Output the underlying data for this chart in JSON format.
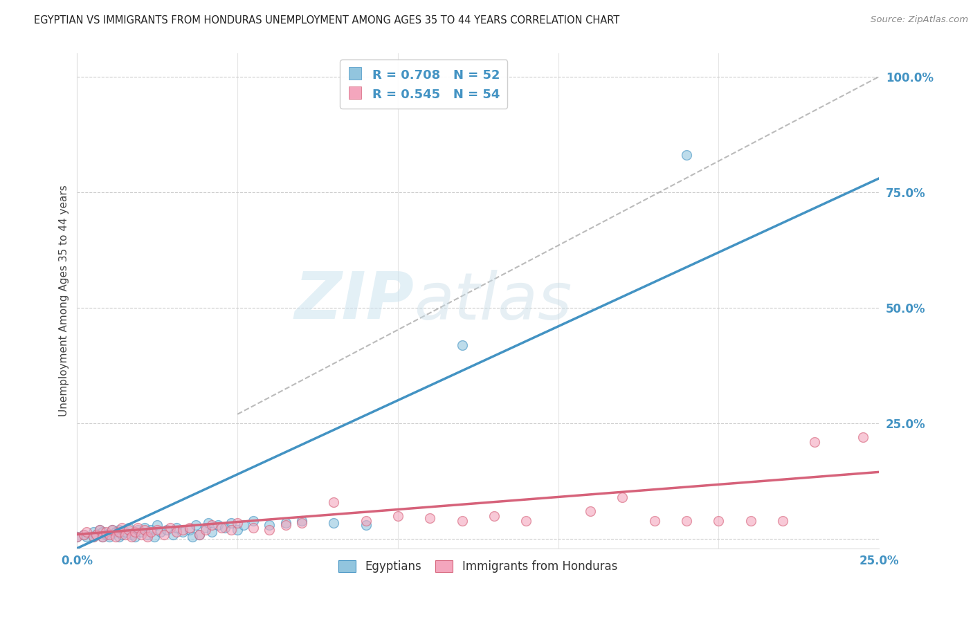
{
  "title": "EGYPTIAN VS IMMIGRANTS FROM HONDURAS UNEMPLOYMENT AMONG AGES 35 TO 44 YEARS CORRELATION CHART",
  "source": "Source: ZipAtlas.com",
  "ylabel": "Unemployment Among Ages 35 to 44 years",
  "xlim": [
    0.0,
    0.25
  ],
  "ylim": [
    -0.02,
    1.05
  ],
  "blue_R": 0.708,
  "blue_N": 52,
  "pink_R": 0.545,
  "pink_N": 54,
  "blue_color": "#92c5de",
  "pink_color": "#f4a6bd",
  "blue_line_color": "#4393c3",
  "pink_line_color": "#d6627a",
  "dashed_line_color": "#aaaaaa",
  "grid_color": "#cccccc",
  "blue_line_x0": 0.0,
  "blue_line_y0": -0.02,
  "blue_line_x1": 0.25,
  "blue_line_y1": 0.78,
  "pink_line_x0": 0.0,
  "pink_line_y0": 0.01,
  "pink_line_x1": 0.25,
  "pink_line_y1": 0.145,
  "dash_line_x0": 0.05,
  "dash_line_y0": 0.27,
  "dash_line_x1": 0.25,
  "dash_line_y1": 1.0,
  "blue_scatter_x": [
    0.0,
    0.002,
    0.003,
    0.005,
    0.005,
    0.006,
    0.007,
    0.008,
    0.008,
    0.009,
    0.01,
    0.011,
    0.012,
    0.013,
    0.013,
    0.014,
    0.015,
    0.016,
    0.017,
    0.018,
    0.019,
    0.02,
    0.021,
    0.022,
    0.023,
    0.024,
    0.025,
    0.026,
    0.028,
    0.03,
    0.031,
    0.033,
    0.035,
    0.036,
    0.037,
    0.038,
    0.04,
    0.041,
    0.042,
    0.044,
    0.046,
    0.048,
    0.05,
    0.052,
    0.055,
    0.06,
    0.065,
    0.07,
    0.08,
    0.09,
    0.12,
    0.19
  ],
  "blue_scatter_y": [
    0.005,
    0.01,
    0.005,
    0.015,
    0.005,
    0.01,
    0.02,
    0.005,
    0.015,
    0.01,
    0.005,
    0.02,
    0.015,
    0.005,
    0.02,
    0.01,
    0.015,
    0.025,
    0.01,
    0.005,
    0.02,
    0.015,
    0.025,
    0.01,
    0.02,
    0.005,
    0.03,
    0.015,
    0.02,
    0.01,
    0.025,
    0.015,
    0.02,
    0.005,
    0.03,
    0.01,
    0.025,
    0.035,
    0.015,
    0.03,
    0.025,
    0.035,
    0.02,
    0.03,
    0.04,
    0.03,
    0.035,
    0.04,
    0.035,
    0.03,
    0.42,
    0.83
  ],
  "pink_scatter_x": [
    0.0,
    0.002,
    0.003,
    0.005,
    0.006,
    0.007,
    0.008,
    0.009,
    0.01,
    0.011,
    0.012,
    0.013,
    0.014,
    0.015,
    0.016,
    0.017,
    0.018,
    0.019,
    0.02,
    0.021,
    0.022,
    0.023,
    0.025,
    0.027,
    0.029,
    0.031,
    0.033,
    0.035,
    0.038,
    0.04,
    0.042,
    0.045,
    0.048,
    0.05,
    0.055,
    0.06,
    0.065,
    0.07,
    0.08,
    0.09,
    0.1,
    0.11,
    0.12,
    0.13,
    0.14,
    0.16,
    0.17,
    0.18,
    0.19,
    0.2,
    0.21,
    0.22,
    0.23,
    0.245
  ],
  "pink_scatter_y": [
    0.005,
    0.01,
    0.015,
    0.005,
    0.01,
    0.02,
    0.005,
    0.015,
    0.01,
    0.02,
    0.005,
    0.015,
    0.025,
    0.01,
    0.02,
    0.005,
    0.015,
    0.025,
    0.01,
    0.02,
    0.005,
    0.015,
    0.02,
    0.01,
    0.025,
    0.015,
    0.02,
    0.025,
    0.01,
    0.02,
    0.03,
    0.025,
    0.02,
    0.035,
    0.025,
    0.02,
    0.03,
    0.035,
    0.08,
    0.04,
    0.05,
    0.045,
    0.04,
    0.05,
    0.04,
    0.06,
    0.09,
    0.04,
    0.04,
    0.04,
    0.04,
    0.04,
    0.21,
    0.22
  ]
}
